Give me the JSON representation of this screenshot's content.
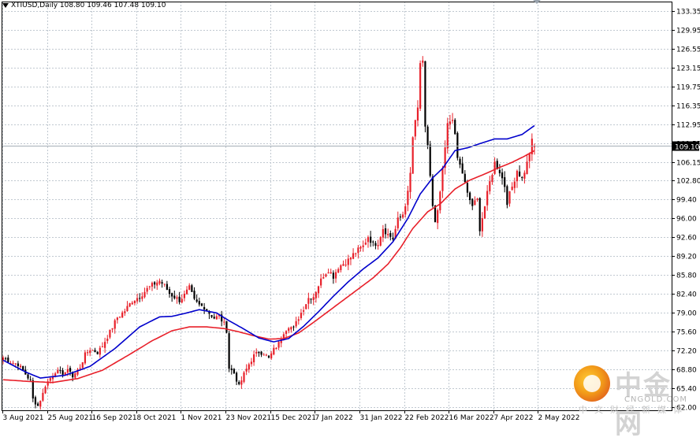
{
  "header": {
    "symbol_line": "XTIUSD,Daily  108.80 109.46 107.48 109.10"
  },
  "price_tag": "109.10",
  "watermark": {
    "brand": "中金网",
    "domain": "CNGOLD.COM",
    "tagline": "中文财经新媒体"
  },
  "colors": {
    "bull": "#e8202a",
    "bear": "#000000",
    "ma_fast": "#0000cc",
    "ma_slow": "#e8202a",
    "grid": "#c0c8d0",
    "price_line": "#a6aeb6",
    "tag_bg": "#000000",
    "tag_fg": "#ffffff"
  },
  "chart_data": {
    "type": "candlestick",
    "title": "XTIUSD,Daily",
    "last_ohlc": {
      "open": 108.8,
      "high": 109.46,
      "low": 107.48,
      "close": 109.1
    },
    "ylim": [
      61.5,
      135.0
    ],
    "y_ticks": [
      "133.35",
      "129.95",
      "126.55",
      "123.15",
      "119.75",
      "116.35",
      "112.95",
      "109.55",
      "106.15",
      "102.80",
      "99.40",
      "96.00",
      "92.60",
      "89.20",
      "85.80",
      "82.40",
      "79.00",
      "75.60",
      "72.20",
      "68.80",
      "65.40",
      "62.00"
    ],
    "x_ticks": [
      "3 Aug 2021",
      "25 Aug 2021",
      "16 Sep 2021",
      "8 Oct 2021",
      "1 Nov 2021",
      "23 Nov 2021",
      "15 Dec 2021",
      "7 Jan 2022",
      "31 Jan 2022",
      "22 Feb 2022",
      "16 Mar 2022",
      "7 Apr 2022",
      "2 May 2022"
    ],
    "close_anchors": [
      [
        0,
        71.0
      ],
      [
        3,
        70.2
      ],
      [
        6,
        69.8
      ],
      [
        9,
        68.0
      ],
      [
        11,
        66.8
      ],
      [
        12,
        63.5
      ],
      [
        14,
        62.3
      ],
      [
        16,
        64.5
      ],
      [
        17,
        66.0
      ],
      [
        19,
        67.3
      ],
      [
        21,
        68.5
      ],
      [
        24,
        68.2
      ],
      [
        27,
        68.7
      ],
      [
        28,
        67.5
      ],
      [
        31,
        69.3
      ],
      [
        33,
        71.5
      ],
      [
        35,
        72.5
      ],
      [
        38,
        71.9
      ],
      [
        40,
        73.1
      ],
      [
        43,
        75.6
      ],
      [
        46,
        78.2
      ],
      [
        49,
        79.4
      ],
      [
        52,
        81.2
      ],
      [
        55,
        82.0
      ],
      [
        58,
        83.3
      ],
      [
        61,
        84.3
      ],
      [
        63,
        84.8
      ],
      [
        65,
        83.9
      ],
      [
        67,
        82.5
      ],
      [
        69,
        81.9
      ],
      [
        71,
        81.3
      ],
      [
        73,
        82.2
      ],
      [
        75,
        83.5
      ],
      [
        77,
        81.2
      ],
      [
        79,
        80.4
      ],
      [
        81,
        80.1
      ],
      [
        83,
        79.0
      ],
      [
        85,
        78.1
      ],
      [
        87,
        78.4
      ],
      [
        89,
        77.0
      ],
      [
        90,
        75.9
      ],
      [
        91,
        69.1
      ],
      [
        93,
        68.2
      ],
      [
        95,
        65.8
      ],
      [
        97,
        68.0
      ],
      [
        99,
        69.8
      ],
      [
        101,
        71.3
      ],
      [
        103,
        72.0
      ],
      [
        105,
        71.8
      ],
      [
        107,
        70.8
      ],
      [
        109,
        72.4
      ],
      [
        111,
        73.5
      ],
      [
        113,
        75.6
      ],
      [
        115,
        76.7
      ],
      [
        117,
        76.2
      ],
      [
        119,
        78.2
      ],
      [
        121,
        79.9
      ],
      [
        123,
        81.7
      ],
      [
        125,
        82.0
      ],
      [
        127,
        84.0
      ],
      [
        129,
        85.8
      ],
      [
        131,
        86.8
      ],
      [
        133,
        85.6
      ],
      [
        135,
        87.3
      ],
      [
        137,
        87.9
      ],
      [
        139,
        88.5
      ],
      [
        141,
        89.5
      ],
      [
        143,
        90.3
      ],
      [
        145,
        91.0
      ],
      [
        147,
        92.8
      ],
      [
        149,
        91.4
      ],
      [
        151,
        91.7
      ],
      [
        153,
        94.3
      ],
      [
        155,
        93.1
      ],
      [
        157,
        92.4
      ],
      [
        159,
        95.7
      ],
      [
        161,
        96.8
      ],
      [
        163,
        100.5
      ],
      [
        164,
        104.0
      ],
      [
        165,
        110.6
      ],
      [
        167,
        115.7
      ],
      [
        168,
        124.0
      ],
      [
        169,
        123.7
      ],
      [
        170,
        112.0
      ],
      [
        171,
        109.3
      ],
      [
        173,
        98.0
      ],
      [
        174,
        95.0
      ],
      [
        175,
        97.0
      ],
      [
        177,
        104.5
      ],
      [
        179,
        112.7
      ],
      [
        181,
        114.3
      ],
      [
        183,
        106.8
      ],
      [
        185,
        104.2
      ],
      [
        187,
        100.3
      ],
      [
        189,
        98.3
      ],
      [
        191,
        99.3
      ],
      [
        192,
        94.2
      ],
      [
        194,
        98.2
      ],
      [
        196,
        102.5
      ],
      [
        198,
        106.0
      ],
      [
        200,
        104.5
      ],
      [
        202,
        101.9
      ],
      [
        203,
        99.0
      ],
      [
        205,
        101.7
      ],
      [
        207,
        104.7
      ],
      [
        209,
        103.2
      ],
      [
        211,
        105.9
      ],
      [
        213,
        109.8
      ],
      [
        214,
        109.1
      ]
    ],
    "ma_fast": {
      "name": "",
      "color": "#0000cc",
      "points": [
        [
          0,
          70.5
        ],
        [
          9,
          68.4
        ],
        [
          15,
          67.3
        ],
        [
          25,
          67.8
        ],
        [
          35,
          69.4
        ],
        [
          45,
          72.6
        ],
        [
          55,
          76.5
        ],
        [
          63,
          78.3
        ],
        [
          68,
          78.4
        ],
        [
          73,
          78.9
        ],
        [
          79,
          79.6
        ],
        [
          86,
          79.0
        ],
        [
          91,
          77.6
        ],
        [
          97,
          76.1
        ],
        [
          103,
          74.5
        ],
        [
          109,
          73.8
        ],
        [
          115,
          74.4
        ],
        [
          121,
          76.6
        ],
        [
          127,
          79.2
        ],
        [
          133,
          82.0
        ],
        [
          139,
          84.6
        ],
        [
          145,
          86.9
        ],
        [
          151,
          88.9
        ],
        [
          157,
          91.8
        ],
        [
          163,
          96.0
        ],
        [
          168,
          100.4
        ],
        [
          173,
          103.3
        ],
        [
          177,
          105.0
        ],
        [
          182,
          108.2
        ],
        [
          187,
          108.7
        ],
        [
          193,
          109.6
        ],
        [
          198,
          110.3
        ],
        [
          203,
          110.3
        ],
        [
          209,
          111.1
        ],
        [
          214,
          112.7
        ]
      ]
    },
    "ma_slow": {
      "name": "",
      "color": "#e8202a",
      "points": [
        [
          0,
          67.0
        ],
        [
          10,
          66.7
        ],
        [
          20,
          66.5
        ],
        [
          30,
          67.2
        ],
        [
          40,
          68.7
        ],
        [
          50,
          71.3
        ],
        [
          60,
          74.0
        ],
        [
          68,
          75.8
        ],
        [
          75,
          76.5
        ],
        [
          82,
          76.5
        ],
        [
          89,
          76.2
        ],
        [
          95,
          75.6
        ],
        [
          101,
          74.9
        ],
        [
          107,
          74.3
        ],
        [
          113,
          74.4
        ],
        [
          119,
          75.4
        ],
        [
          125,
          77.3
        ],
        [
          131,
          79.3
        ],
        [
          137,
          81.3
        ],
        [
          143,
          83.3
        ],
        [
          149,
          85.3
        ],
        [
          155,
          87.8
        ],
        [
          160,
          90.7
        ],
        [
          165,
          94.2
        ],
        [
          171,
          97.2
        ],
        [
          176,
          98.6
        ],
        [
          182,
          101.3
        ],
        [
          188,
          102.9
        ],
        [
          194,
          104.0
        ],
        [
          199,
          105.0
        ],
        [
          205,
          106.1
        ],
        [
          210,
          107.2
        ],
        [
          214,
          108.2
        ]
      ]
    }
  }
}
